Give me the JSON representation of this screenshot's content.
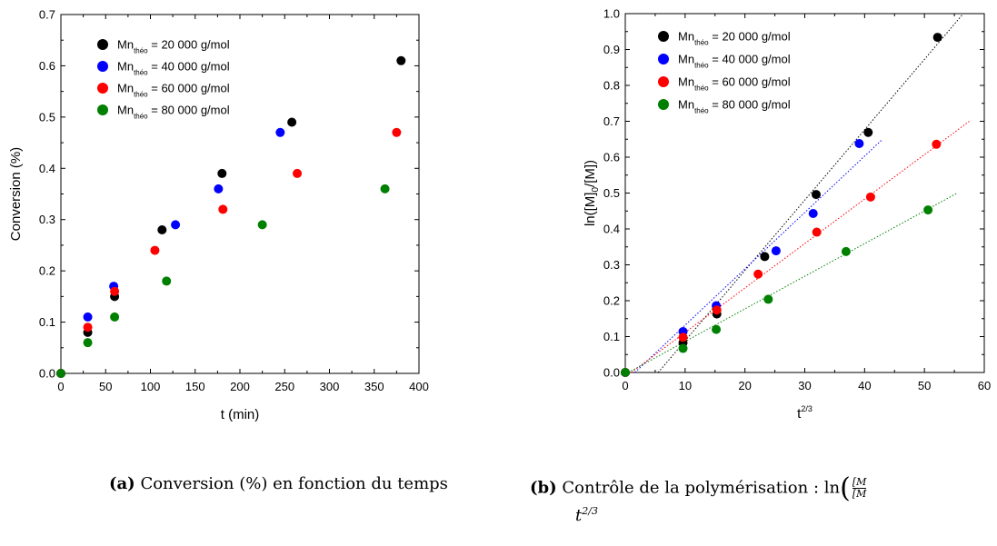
{
  "chart_data": [
    {
      "id": "a",
      "type": "scatter",
      "xlabel": "t (min)",
      "ylabel": "Conversion (%)",
      "xlim": [
        0,
        400
      ],
      "ylim": [
        0,
        0.7
      ],
      "xticks": [
        "0",
        "50",
        "100",
        "150",
        "200",
        "250",
        "300",
        "350",
        "400"
      ],
      "yticks": [
        "0.0",
        "0.1",
        "0.2",
        "0.3",
        "0.4",
        "0.5",
        "0.6",
        "0.7"
      ],
      "legend_position": "top-left",
      "series": [
        {
          "name": "Mn_théo = 20 000 g/mol",
          "label_main": "Mn",
          "label_sub": "théo",
          "label_rest": "= 20 000 g/mol",
          "color": "#000000",
          "points": [
            [
              0,
              0
            ],
            [
              30,
              0.08
            ],
            [
              60,
              0.15
            ],
            [
              113,
              0.28
            ],
            [
              180,
              0.39
            ],
            [
              258,
              0.49
            ],
            [
              380,
              0.61
            ]
          ]
        },
        {
          "name": "Mn_théo = 40 000 g/mol",
          "label_main": "Mn",
          "label_sub": "théo",
          "label_rest": "= 40 000 g/mol",
          "color": "#0000ff",
          "points": [
            [
              0,
              0
            ],
            [
              30,
              0.11
            ],
            [
              59,
              0.17
            ],
            [
              128,
              0.29
            ],
            [
              176,
              0.36
            ],
            [
              245,
              0.47
            ]
          ]
        },
        {
          "name": "Mn_théo = 60 000 g/mol",
          "label_main": "Mn",
          "label_sub": "théo",
          "label_rest": "= 60 000 g/mol",
          "color": "#ff0000",
          "points": [
            [
              0,
              0
            ],
            [
              30,
              0.09
            ],
            [
              60,
              0.16
            ],
            [
              105,
              0.24
            ],
            [
              181,
              0.32
            ],
            [
              264,
              0.39
            ],
            [
              375,
              0.47
            ]
          ]
        },
        {
          "name": "Mn_théo = 80 000 g/mol",
          "label_main": "Mn",
          "label_sub": "théo",
          "label_rest": "= 80 000 g/mol",
          "color": "#008000",
          "points": [
            [
              0,
              0
            ],
            [
              30,
              0.06
            ],
            [
              60,
              0.11
            ],
            [
              118,
              0.18
            ],
            [
              225,
              0.29
            ],
            [
              362,
              0.36
            ]
          ]
        }
      ]
    },
    {
      "id": "b",
      "type": "scatter",
      "xlabel": "t",
      "xlabel_sup": "2/3",
      "ylabel": "ln([M]0/[M])",
      "ylabel_parts": [
        "ln([M]",
        "0",
        "/[M])"
      ],
      "xlim": [
        0,
        60
      ],
      "ylim": [
        0,
        1.0
      ],
      "xticks": [
        "0",
        "10",
        "20",
        "30",
        "40",
        "50",
        "60"
      ],
      "yticks": [
        "0.0",
        "0.1",
        "0.2",
        "0.3",
        "0.4",
        "0.5",
        "0.6",
        "0.7",
        "0.8",
        "0.9",
        "1.0"
      ],
      "legend_position": "top-left",
      "series": [
        {
          "name": "Mn_théo = 20 000 g/mol",
          "label_main": "Mn",
          "label_sub": "théo",
          "label_rest": "= 20 000 g/mol",
          "color": "#000000",
          "points": [
            [
              0,
              0
            ],
            [
              9.65,
              0.083
            ],
            [
              15.3,
              0.163
            ],
            [
              23.3,
              0.323
            ],
            [
              31.9,
              0.496
            ],
            [
              40.6,
              0.669
            ],
            [
              52.2,
              0.934
            ]
          ],
          "fit": [
            [
              5.5,
              0
            ],
            [
              56.5,
              1.0
            ]
          ]
        },
        {
          "name": "Mn_théo = 40 000 g/mol",
          "label_main": "Mn",
          "label_sub": "théo",
          "label_rest": "= 40 000 g/mol",
          "color": "#0000ff",
          "points": [
            [
              0,
              0
            ],
            [
              9.65,
              0.114
            ],
            [
              15.2,
              0.186
            ],
            [
              25.2,
              0.339
            ],
            [
              31.4,
              0.443
            ],
            [
              39.1,
              0.638
            ]
          ],
          "fit": [
            [
              1.6,
              0
            ],
            [
              43,
              0.65
            ]
          ]
        },
        {
          "name": "Mn_théo = 60 000 g/mol",
          "label_main": "Mn",
          "label_sub": "théo",
          "label_rest": "= 60 000 g/mol",
          "color": "#ff0000",
          "points": [
            [
              0,
              0
            ],
            [
              9.65,
              0.098
            ],
            [
              15.3,
              0.174
            ],
            [
              22.2,
              0.274
            ],
            [
              32.0,
              0.391
            ],
            [
              41.0,
              0.489
            ],
            [
              52.0,
              0.636
            ]
          ],
          "fit": [
            [
              1.0,
              0
            ],
            [
              57.5,
              0.7
            ]
          ]
        },
        {
          "name": "Mn_théo = 80 000 g/mol",
          "label_main": "Mn",
          "label_sub": "théo",
          "label_rest": "= 80 000 g/mol",
          "color": "#008000",
          "points": [
            [
              0,
              0
            ],
            [
              9.65,
              0.067
            ],
            [
              15.2,
              0.12
            ],
            [
              23.9,
              0.204
            ],
            [
              36.9,
              0.337
            ],
            [
              50.6,
              0.453
            ]
          ],
          "fit": [
            [
              0.5,
              0
            ],
            [
              55.5,
              0.5
            ]
          ]
        }
      ]
    }
  ],
  "captions": {
    "a": {
      "tag": "(a)",
      "text": "Conversion (%) en fonction du temps"
    },
    "b": {
      "tag": "(b)",
      "text_line1": "Contrôle de la polymérisation : ln",
      "frac_num": "[M",
      "frac_den": "[M",
      "line2_base": "t",
      "line2_sup": "2/3"
    }
  }
}
